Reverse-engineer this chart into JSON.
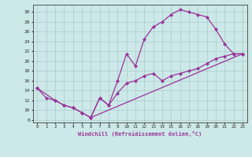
{
  "xlabel": "Windchill (Refroidissement éolien,°C)",
  "bg_color": "#cce8e8",
  "line_color": "#993399",
  "grid_color": "#aacccc",
  "xlim": [
    -0.5,
    23.5
  ],
  "ylim": [
    7.5,
    31.5
  ],
  "xticks": [
    0,
    1,
    2,
    3,
    4,
    5,
    6,
    7,
    8,
    9,
    10,
    11,
    12,
    13,
    14,
    15,
    16,
    17,
    18,
    19,
    20,
    21,
    22,
    23
  ],
  "yticks": [
    8,
    10,
    12,
    14,
    16,
    18,
    20,
    22,
    24,
    26,
    28,
    30
  ],
  "line1_x": [
    0,
    1,
    2,
    3,
    4,
    5,
    6,
    7,
    8,
    9,
    10,
    11,
    12,
    13,
    14,
    15,
    16,
    17,
    18,
    19,
    20,
    21,
    22,
    23
  ],
  "line1_y": [
    14.5,
    12.5,
    12.0,
    11.0,
    10.5,
    9.5,
    8.5,
    12.5,
    11.0,
    16.0,
    21.5,
    19.0,
    24.5,
    27.0,
    28.0,
    29.5,
    30.5,
    30.0,
    29.5,
    29.0,
    26.5,
    23.5,
    21.5,
    21.5
  ],
  "line2_x": [
    0,
    2,
    3,
    4,
    5,
    6,
    23
  ],
  "line2_y": [
    14.5,
    12.0,
    11.0,
    10.5,
    9.5,
    8.5,
    21.5
  ],
  "line3_x": [
    6,
    7,
    8,
    9,
    10,
    11,
    12,
    13,
    14,
    15,
    16,
    17,
    18,
    19,
    20,
    21,
    22,
    23
  ],
  "line3_y": [
    8.5,
    12.5,
    11.0,
    13.5,
    15.5,
    16.0,
    17.0,
    17.5,
    16.0,
    17.0,
    17.5,
    18.0,
    18.5,
    19.5,
    20.5,
    21.0,
    21.5,
    21.5
  ]
}
